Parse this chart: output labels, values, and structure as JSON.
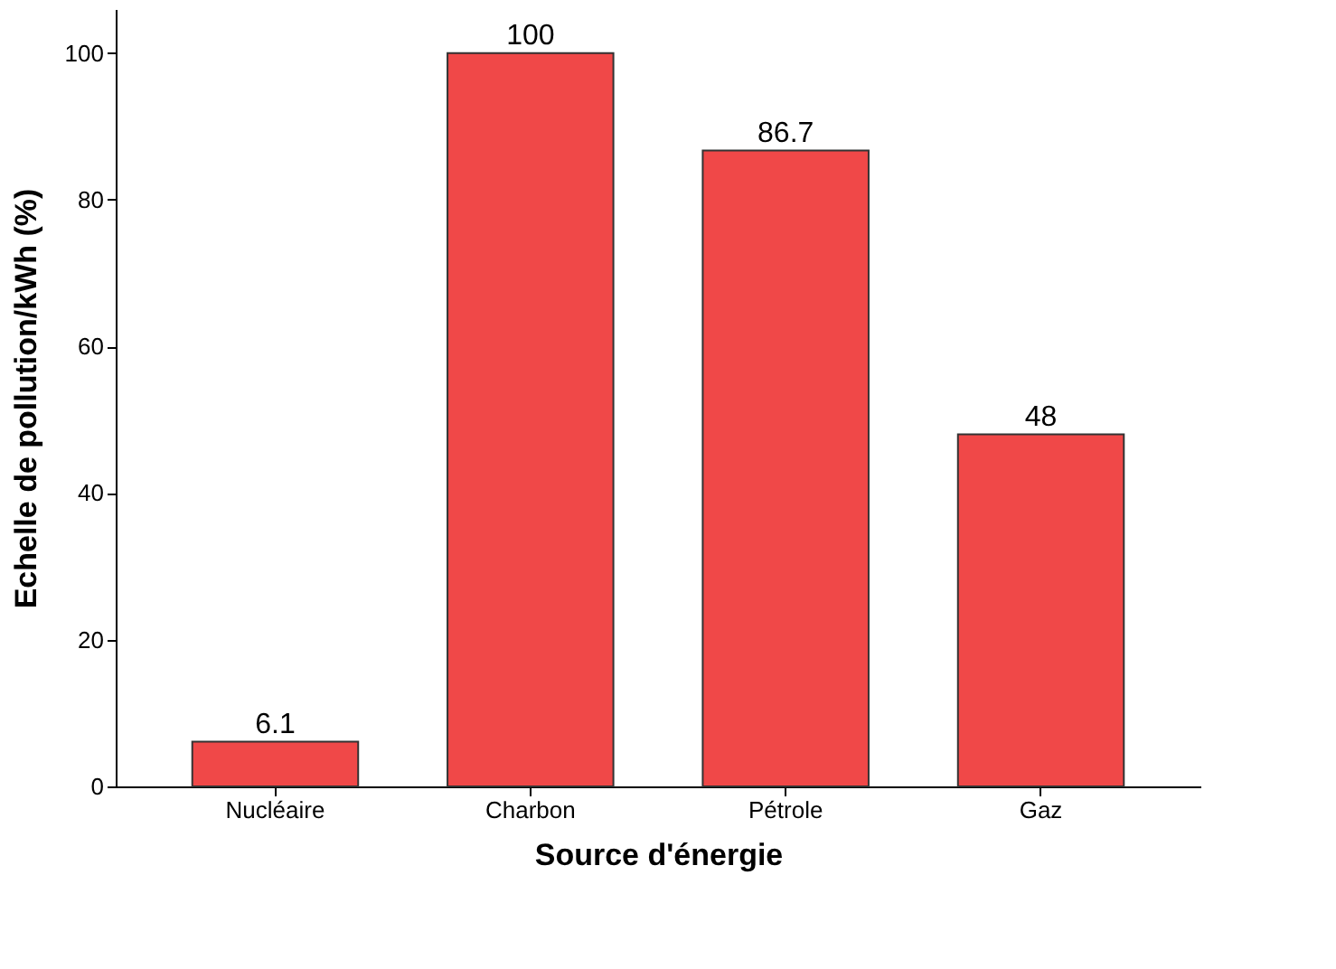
{
  "chart_data": {
    "type": "bar",
    "xlabel": "Source d'énergie",
    "ylabel": "Echelle de pollution/kWh (%)",
    "categories": [
      "Nucléaire",
      "Charbon",
      "Pétrole",
      "Gaz"
    ],
    "values": [
      6.1,
      100,
      86.7,
      48
    ],
    "color": "#f04848",
    "ylim": [
      0,
      106
    ],
    "yticks": [
      0,
      20,
      40,
      60,
      80,
      100
    ],
    "data_labels": true,
    "grid": false
  }
}
